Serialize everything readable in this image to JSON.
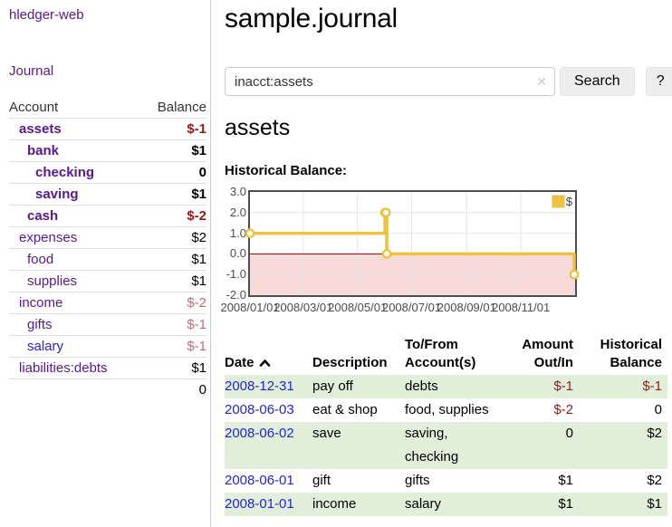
{
  "sidebar": {
    "brand": "hledger-web",
    "nav": {
      "journal": "Journal"
    },
    "accounts": {
      "col_account": "Account",
      "col_balance": "Balance",
      "rows": [
        {
          "name": "assets",
          "balance": "$-1"
        },
        {
          "name": "bank",
          "balance": "$1"
        },
        {
          "name": "checking",
          "balance": "0"
        },
        {
          "name": "saving",
          "balance": "$1"
        },
        {
          "name": "cash",
          "balance": "$-2"
        },
        {
          "name": "expenses",
          "balance": "$2"
        },
        {
          "name": "food",
          "balance": "$1"
        },
        {
          "name": "supplies",
          "balance": "$1"
        },
        {
          "name": "income",
          "balance": "$-2"
        },
        {
          "name": "gifts",
          "balance": "$-1"
        },
        {
          "name": "salary",
          "balance": "$-1"
        },
        {
          "name": "liabilities:debts",
          "balance": "$1"
        }
      ],
      "total": "0"
    }
  },
  "main": {
    "title": "sample.journal",
    "search": {
      "value": "inacct:assets",
      "clear_icon": "✕",
      "search_button": "Search",
      "help_button": "?"
    },
    "account_heading": "assets",
    "chart_title": "Historical Balance:"
  },
  "chart_data": {
    "type": "line",
    "step": true,
    "title": "Historical Balance:",
    "series": [
      {
        "name": "$",
        "color": "#edc240",
        "points": [
          {
            "x": "2008-01-01",
            "y": 1
          },
          {
            "x": "2008-06-01",
            "y": 2
          },
          {
            "x": "2008-06-02",
            "y": 2
          },
          {
            "x": "2008-06-03",
            "y": 0
          },
          {
            "x": "2008-12-31",
            "y": -1
          }
        ]
      }
    ],
    "x_range": [
      "2008-01-01",
      "2009-01-01"
    ],
    "ylim": [
      -2,
      3
    ],
    "y_ticks": [
      {
        "v": 3,
        "label": "3.0"
      },
      {
        "v": 2,
        "label": "2.0"
      },
      {
        "v": 1,
        "label": "1.0"
      },
      {
        "v": 0,
        "label": "0.0"
      },
      {
        "v": -1,
        "label": "-1.0"
      },
      {
        "v": -2,
        "label": "-2.0"
      }
    ],
    "x_ticks": [
      {
        "x": "2008-01-01",
        "label": "2008/01/01"
      },
      {
        "x": "2008-03-01",
        "label": "2008/03/01"
      },
      {
        "x": "2008-05-01",
        "label": "2008/05/01"
      },
      {
        "x": "2008-07-01",
        "label": "2008/07/01"
      },
      {
        "x": "2008-09-01",
        "label": "2008/09/01"
      },
      {
        "x": "2008-11-01",
        "label": "2008/11/01"
      }
    ],
    "legend": {
      "label": "$",
      "position": "top-right"
    },
    "grid": true,
    "negative_region": {
      "from": 0,
      "to": -2,
      "color": "#f9dada"
    },
    "zero_line_color": "#8f0000"
  },
  "register": {
    "headers": {
      "date": "Date",
      "description": "Description",
      "accounts": "To/From Account(s)",
      "amount": "Amount Out/In",
      "balance": "Historical Balance"
    },
    "rows": [
      {
        "date": "2008-12-31",
        "description": "pay off",
        "accounts": "debts",
        "amount": "$-1",
        "balance": "$-1"
      },
      {
        "date": "2008-06-03",
        "description": "eat & shop",
        "accounts": "food, supplies",
        "amount": "$-2",
        "balance": "0"
      },
      {
        "date": "2008-06-02",
        "description": "save",
        "accounts": "saving, checking",
        "amount": "0",
        "balance": "$2"
      },
      {
        "date": "2008-06-01",
        "description": "gift",
        "accounts": "gifts",
        "amount": "$1",
        "balance": "$2"
      },
      {
        "date": "2008-01-01",
        "description": "income",
        "accounts": "salary",
        "amount": "$1",
        "balance": "$1"
      }
    ]
  }
}
